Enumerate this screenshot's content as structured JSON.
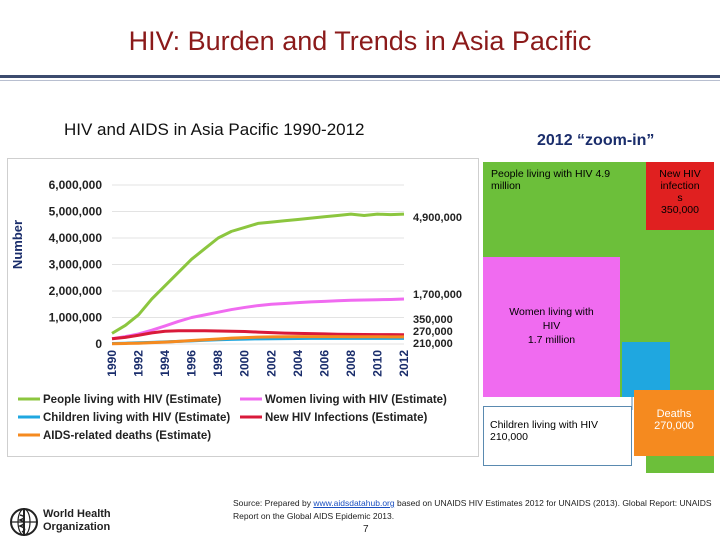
{
  "page": {
    "title": "HIV: Burden and Trends in Asia Pacific",
    "subtitle": "HIV and AIDS in Asia Pacific 1990-2012",
    "zoom_title": "2012 “zoom-in”",
    "source_prefix": "Source: Prepared by ",
    "source_link": "www.aidsdatahub.org",
    "source_suffix": " based on UNAIDS HIV Estimates 2012 for UNAIDS (2013). Global Report: UNAIDS Report on the Global AIDS Epidemic 2013.",
    "page_number": "7",
    "logo": {
      "name": "who-logo-icon",
      "line1": "World Health",
      "line2": "Organization"
    }
  },
  "chart_data": {
    "type": "line",
    "title": "HIV and AIDS in Asia Pacific 1990-2012",
    "ylabel": "Number",
    "xlabel": "",
    "ylim": [
      0,
      6000000
    ],
    "yticks": [
      0,
      1000000,
      2000000,
      3000000,
      4000000,
      5000000,
      6000000
    ],
    "ytick_labels": [
      "0",
      "1,000,000",
      "2,000,000",
      "3,000,000",
      "4,000,000",
      "5,000,000",
      "6,000,000"
    ],
    "x": [
      1990,
      1991,
      1992,
      1993,
      1994,
      1995,
      1996,
      1997,
      1998,
      1999,
      2000,
      2001,
      2002,
      2003,
      2004,
      2005,
      2006,
      2007,
      2008,
      2009,
      2010,
      2011,
      2012
    ],
    "xtick_labels": [
      "1990",
      "1992",
      "1994",
      "1996",
      "1998",
      "2000",
      "2002",
      "2004",
      "2006",
      "2008",
      "2010",
      "2012"
    ],
    "grid": true,
    "legend_position": "bottom",
    "series": [
      {
        "name": "People living with HIV (Estimate)",
        "color": "#8cc63f",
        "values": [
          400000,
          700000,
          1100000,
          1700000,
          2200000,
          2700000,
          3200000,
          3600000,
          4000000,
          4250000,
          4400000,
          4550000,
          4600000,
          4650000,
          4700000,
          4750000,
          4800000,
          4850000,
          4900000,
          4850000,
          4900000,
          4880000,
          4900000
        ],
        "end_label": "4,900,000"
      },
      {
        "name": "Women living with HIV (Estimate)",
        "color": "#f06bf0",
        "values": [
          200000,
          280000,
          380000,
          520000,
          680000,
          850000,
          1000000,
          1100000,
          1200000,
          1300000,
          1380000,
          1450000,
          1500000,
          1530000,
          1560000,
          1590000,
          1610000,
          1630000,
          1650000,
          1660000,
          1670000,
          1680000,
          1700000
        ],
        "end_label": "1,700,000"
      },
      {
        "name": "Children living with HIV (Estimate)",
        "color": "#1fa7e0",
        "values": [
          20000,
          30000,
          45000,
          60000,
          80000,
          100000,
          120000,
          140000,
          160000,
          175000,
          185000,
          195000,
          200000,
          205000,
          208000,
          210000,
          210000,
          210000,
          210000,
          210000,
          210000,
          210000,
          210000
        ],
        "end_label": "210,000"
      },
      {
        "name": "New HIV Infections (Estimate)",
        "color": "#d91a3a",
        "values": [
          200000,
          250000,
          330000,
          420000,
          480000,
          500000,
          500000,
          500000,
          490000,
          480000,
          470000,
          450000,
          430000,
          410000,
          400000,
          390000,
          380000,
          370000,
          365000,
          360000,
          355000,
          352000,
          350000
        ],
        "end_label": "350,000"
      },
      {
        "name": "AIDS-related deaths (Estimate)",
        "color": "#f58a1f",
        "values": [
          10000,
          20000,
          30000,
          50000,
          70000,
          100000,
          130000,
          160000,
          190000,
          220000,
          240000,
          260000,
          270000,
          275000,
          280000,
          280000,
          280000,
          278000,
          275000,
          273000,
          272000,
          271000,
          270000
        ],
        "end_label": "270,000"
      }
    ]
  },
  "treemap": {
    "plhiv": "People living with HIV 4.9 million",
    "new_infections": [
      "New HIV",
      "infection",
      "s",
      "350,000"
    ],
    "women": [
      "Women living with",
      "HIV",
      "1.7 million"
    ],
    "children": [
      "Children living with HIV",
      "210,000"
    ],
    "deaths": [
      "Deaths",
      "270,000"
    ]
  }
}
